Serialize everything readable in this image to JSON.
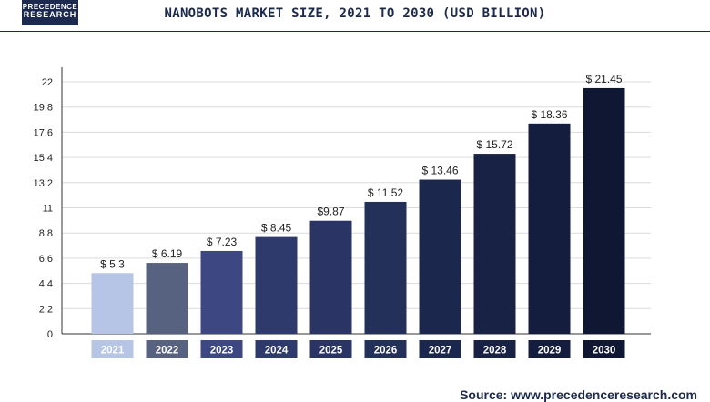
{
  "header": {
    "logo_line1": "PRECEDENCE",
    "logo_line2": "RESEARCH",
    "title": "NANOBOTS MARKET SIZE, 2021 TO 2030 (USD BILLION)"
  },
  "source": "Source: www.precedenceresearch.com",
  "chart_data": {
    "type": "bar",
    "title": "NANOBOTS MARKET SIZE, 2021 TO 2030 (USD BILLION)",
    "xlabel": "",
    "ylabel": "",
    "categories": [
      "2021",
      "2022",
      "2023",
      "2024",
      "2025",
      "2026",
      "2027",
      "2028",
      "2029",
      "2030"
    ],
    "values": [
      5.3,
      6.19,
      7.23,
      8.45,
      9.87,
      11.52,
      13.46,
      15.72,
      18.36,
      21.45
    ],
    "data_labels": [
      "$ 5.3",
      "$ 6.19",
      "$ 7.23",
      "$ 8.45",
      "$9.87",
      "$ 11.52",
      "$ 13.46",
      "$ 15.72",
      "$ 18.36",
      "$ 21.45"
    ],
    "yticks": [
      "0",
      "2.2",
      "4.4",
      "6.6",
      "8.8",
      "11",
      "13.2",
      "15.4",
      "17.6",
      "19.8",
      "22"
    ],
    "ylim": [
      0,
      22
    ],
    "grid": true,
    "legend": "none",
    "bar_colors": [
      "#b6c4e6",
      "#56627f",
      "#3d4782",
      "#2f3a6c",
      "#2a3566",
      "#23305a",
      "#1c274d",
      "#182245",
      "#141d3d",
      "#0f1733"
    ]
  }
}
